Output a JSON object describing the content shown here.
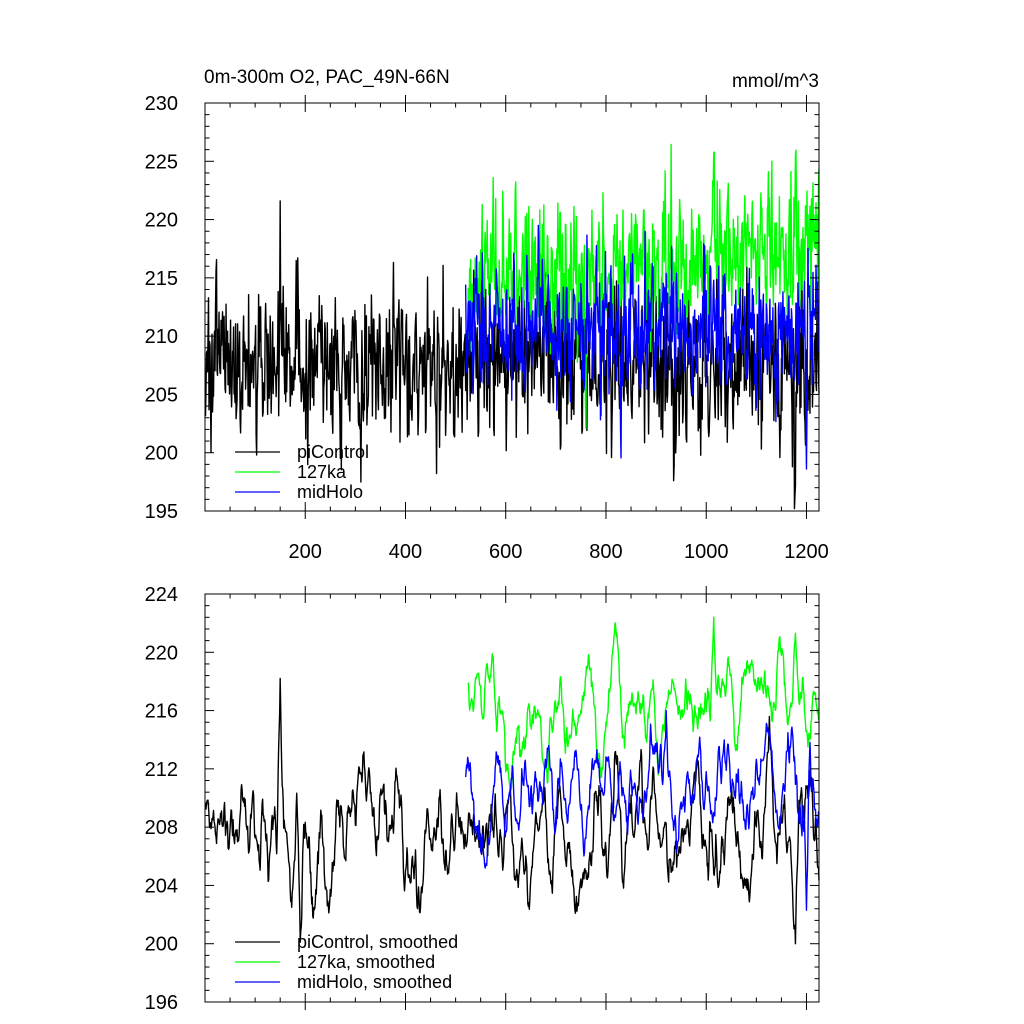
{
  "chart_data": [
    {
      "type": "line",
      "title": "0m-300m O2, PAC_49N-66N",
      "units": "mmol/m^3",
      "xlabel": "",
      "ylabel": "",
      "xlim": [
        0,
        1225
      ],
      "ylim": [
        195,
        230
      ],
      "xticks": [
        200,
        400,
        600,
        800,
        1000,
        1200
      ],
      "xtick_labels": [
        "200",
        "400",
        "600",
        "800",
        "1000",
        "1200"
      ],
      "yticks": [
        195,
        200,
        205,
        210,
        215,
        220,
        225,
        230
      ],
      "ytick_labels": [
        "195",
        "200",
        "205",
        "210",
        "215",
        "220",
        "225",
        "230"
      ],
      "grid": false,
      "legend_position": "bottom-left",
      "series": [
        {
          "name": "piControl",
          "color": "#000000",
          "x_start": 1,
          "x_end": 1225,
          "mean": 207.6,
          "spread": 3.2,
          "peaks": [
            [
              150,
              221.6
            ],
            [
              935,
              197.6
            ],
            [
              1178,
              197.2
            ]
          ]
        },
        {
          "name": "127ka",
          "color": "#00ff00",
          "x_start": 525,
          "x_end": 1225,
          "mean": 214.8,
          "spread": 2.9,
          "trend_to": 217.5,
          "peaks": [
            [
              575,
              223.6
            ],
            [
              1015,
              225.7
            ],
            [
              1178,
              225.6
            ],
            [
              760,
              202.1
            ]
          ]
        },
        {
          "name": "midHolo",
          "color": "#0000ff",
          "x_start": 520,
          "x_end": 1225,
          "mean": 210.6,
          "spread": 2.8,
          "peaks": [
            [
              665,
              219.5
            ],
            [
              1200,
              198.6
            ]
          ]
        }
      ]
    },
    {
      "type": "line",
      "title": "",
      "xlabel": "",
      "ylabel": "",
      "xlim": [
        0,
        1225
      ],
      "ylim": [
        196,
        224
      ],
      "yticks": [
        196,
        200,
        204,
        208,
        212,
        216,
        220,
        224
      ],
      "ytick_labels": [
        "196",
        "200",
        "204",
        "208",
        "212",
        "216",
        "220",
        "224"
      ],
      "grid": false,
      "legend_position": "bottom-left",
      "series": [
        {
          "name": "piControl, smoothed",
          "color": "#000000",
          "x_start": 1,
          "x_end": 1225,
          "mean": 207.6,
          "spread": 2.3,
          "peaks": [
            [
              150,
              218.2
            ],
            [
              190,
              200.1
            ],
            [
              1178,
              200.0
            ]
          ]
        },
        {
          "name": "127ka, smoothed",
          "color": "#00ff00",
          "x_start": 525,
          "x_end": 1225,
          "mean": 214.8,
          "spread": 1.9,
          "trend_to": 217.5,
          "peaks": [
            [
              575,
              219.7
            ],
            [
              1015,
              222.4
            ],
            [
              1178,
              221.3
            ]
          ]
        },
        {
          "name": "midHolo, smoothed",
          "color": "#0000ff",
          "x_start": 520,
          "x_end": 1225,
          "mean": 210.6,
          "spread": 1.9,
          "peaks": [
            [
              920,
              216.0
            ],
            [
              1200,
              202.3
            ]
          ]
        }
      ]
    }
  ]
}
